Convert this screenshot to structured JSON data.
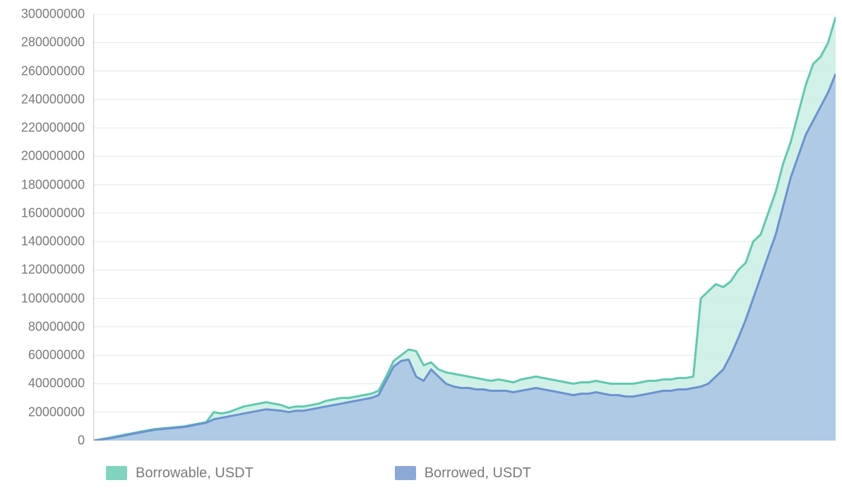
{
  "chart": {
    "type": "area",
    "background_color": "#ffffff",
    "grid_color": "#e6e6e6",
    "axis_color": "#c8c8c8",
    "label_color": "#7a7a7a",
    "label_fontsize": 18,
    "ylim": [
      0,
      300000000
    ],
    "ytick_step": 20000000,
    "yticks": [
      {
        "v": 0,
        "label": "0"
      },
      {
        "v": 20000000,
        "label": "20000000"
      },
      {
        "v": 40000000,
        "label": "40000000"
      },
      {
        "v": 60000000,
        "label": "60000000"
      },
      {
        "v": 80000000,
        "label": "80000000"
      },
      {
        "v": 100000000,
        "label": "100000000"
      },
      {
        "v": 120000000,
        "label": "120000000"
      },
      {
        "v": 140000000,
        "label": "140000000"
      },
      {
        "v": 160000000,
        "label": "160000000"
      },
      {
        "v": 180000000,
        "label": "180000000"
      },
      {
        "v": 200000000,
        "label": "200000000"
      },
      {
        "v": 220000000,
        "label": "220000000"
      },
      {
        "v": 240000000,
        "label": "240000000"
      },
      {
        "v": 260000000,
        "label": "260000000"
      },
      {
        "v": 280000000,
        "label": "280000000"
      },
      {
        "v": 300000000,
        "label": "300000000"
      }
    ],
    "x_count": 100,
    "series": [
      {
        "name": "borrowable",
        "label": "Borrowable, USDT",
        "stroke": "#5fc9b0",
        "fill": "#c9ede4",
        "fill_opacity": 0.85,
        "line_width": 3,
        "values": [
          0,
          1000000,
          2000000,
          3000000,
          4000000,
          5000000,
          6000000,
          7000000,
          8000000,
          8500000,
          9000000,
          9500000,
          10000000,
          11000000,
          12000000,
          13000000,
          20000000,
          19000000,
          20000000,
          22000000,
          24000000,
          25000000,
          26000000,
          27000000,
          26000000,
          25000000,
          23000000,
          24000000,
          24000000,
          25000000,
          26000000,
          28000000,
          29000000,
          30000000,
          30000000,
          31000000,
          32000000,
          33000000,
          35000000,
          45000000,
          56000000,
          60000000,
          64000000,
          63000000,
          53000000,
          55000000,
          50000000,
          48000000,
          47000000,
          46000000,
          45000000,
          44000000,
          43000000,
          42000000,
          43000000,
          42000000,
          41000000,
          43000000,
          44000000,
          45000000,
          44000000,
          43000000,
          42000000,
          41000000,
          40000000,
          41000000,
          41000000,
          42000000,
          41000000,
          40000000,
          40000000,
          40000000,
          40000000,
          41000000,
          42000000,
          42000000,
          43000000,
          43000000,
          44000000,
          44000000,
          45000000,
          100000000,
          105000000,
          110000000,
          108000000,
          112000000,
          120000000,
          125000000,
          140000000,
          145000000,
          160000000,
          175000000,
          195000000,
          210000000,
          230000000,
          250000000,
          265000000,
          270000000,
          280000000,
          298000000
        ]
      },
      {
        "name": "borrowed",
        "label": "Borrowed, USDT",
        "stroke": "#6a93cf",
        "fill": "#a9c3e3",
        "fill_opacity": 0.85,
        "line_width": 3,
        "values": [
          0,
          800000,
          1500000,
          2500000,
          3500000,
          4500000,
          5500000,
          6500000,
          7500000,
          8000000,
          8500000,
          9000000,
          9500000,
          10500000,
          11500000,
          12500000,
          15000000,
          16000000,
          17000000,
          18000000,
          19000000,
          20000000,
          21000000,
          22000000,
          21500000,
          21000000,
          20000000,
          21000000,
          21000000,
          22000000,
          23000000,
          24000000,
          25000000,
          26000000,
          27000000,
          28000000,
          29000000,
          30000000,
          32000000,
          42000000,
          52000000,
          56000000,
          57000000,
          45000000,
          42000000,
          50000000,
          45000000,
          40000000,
          38000000,
          37000000,
          37000000,
          36000000,
          36000000,
          35000000,
          35000000,
          35000000,
          34000000,
          35000000,
          36000000,
          37000000,
          36000000,
          35000000,
          34000000,
          33000000,
          32000000,
          33000000,
          33000000,
          34000000,
          33000000,
          32000000,
          32000000,
          31000000,
          31000000,
          32000000,
          33000000,
          34000000,
          35000000,
          35000000,
          36000000,
          36000000,
          37000000,
          38000000,
          40000000,
          45000000,
          50000000,
          60000000,
          72000000,
          85000000,
          100000000,
          115000000,
          130000000,
          145000000,
          165000000,
          185000000,
          200000000,
          215000000,
          225000000,
          235000000,
          245000000,
          258000000
        ]
      }
    ],
    "legend": {
      "position": "bottom",
      "items": [
        {
          "name": "borrowable",
          "label": "Borrowable, USDT",
          "color": "#80d4c0"
        },
        {
          "name": "borrowed",
          "label": "Borrowed, USDT",
          "color": "#8aa9d6"
        }
      ]
    }
  }
}
